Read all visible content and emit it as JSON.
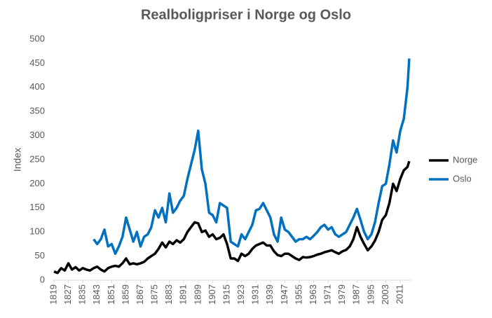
{
  "chart_data": {
    "type": "line",
    "title": "Realboligpriser i Norge og Oslo",
    "y_label": "Index",
    "x": [
      1819,
      1821,
      1823,
      1825,
      1827,
      1829,
      1831,
      1833,
      1835,
      1837,
      1839,
      1841,
      1843,
      1845,
      1847,
      1849,
      1851,
      1853,
      1855,
      1857,
      1859,
      1861,
      1863,
      1865,
      1867,
      1869,
      1871,
      1873,
      1875,
      1877,
      1879,
      1881,
      1883,
      1885,
      1887,
      1889,
      1891,
      1893,
      1895,
      1897,
      1899,
      1901,
      1903,
      1905,
      1907,
      1909,
      1911,
      1913,
      1915,
      1917,
      1919,
      1921,
      1923,
      1925,
      1927,
      1929,
      1931,
      1933,
      1935,
      1937,
      1939,
      1941,
      1943,
      1945,
      1947,
      1949,
      1951,
      1953,
      1955,
      1957,
      1959,
      1961,
      1963,
      1965,
      1967,
      1969,
      1971,
      1973,
      1975,
      1977,
      1979,
      1981,
      1983,
      1985,
      1987,
      1989,
      1991,
      1993,
      1995,
      1997,
      1999,
      2001,
      2003,
      2005,
      2007,
      2009,
      2011,
      2013,
      2015,
      2016
    ],
    "series": [
      {
        "name": "Norge",
        "color": "#000000",
        "values": [
          18,
          15,
          25,
          20,
          35,
          22,
          27,
          20,
          25,
          22,
          20,
          25,
          28,
          22,
          18,
          25,
          28,
          30,
          28,
          35,
          45,
          33,
          35,
          33,
          35,
          38,
          45,
          50,
          55,
          65,
          78,
          68,
          80,
          75,
          83,
          78,
          85,
          100,
          110,
          120,
          118,
          100,
          103,
          90,
          95,
          85,
          88,
          95,
          75,
          45,
          45,
          40,
          55,
          50,
          55,
          65,
          72,
          75,
          78,
          72,
          72,
          60,
          52,
          50,
          55,
          55,
          50,
          45,
          42,
          48,
          47,
          48,
          50,
          53,
          55,
          58,
          60,
          62,
          58,
          55,
          60,
          63,
          70,
          85,
          110,
          90,
          75,
          62,
          70,
          82,
          100,
          125,
          135,
          160,
          200,
          185,
          210,
          228,
          235,
          247
        ]
      },
      {
        "name": "Oslo",
        "color": "#0070c0",
        "values": [
          null,
          null,
          null,
          null,
          null,
          null,
          null,
          null,
          null,
          null,
          null,
          85,
          75,
          85,
          105,
          70,
          75,
          55,
          70,
          90,
          130,
          105,
          80,
          100,
          70,
          90,
          95,
          110,
          145,
          130,
          150,
          120,
          180,
          140,
          150,
          165,
          175,
          210,
          240,
          270,
          310,
          230,
          200,
          140,
          135,
          120,
          160,
          155,
          150,
          80,
          75,
          70,
          95,
          85,
          100,
          115,
          145,
          148,
          160,
          145,
          130,
          95,
          80,
          130,
          105,
          100,
          90,
          80,
          85,
          85,
          90,
          85,
          92,
          100,
          110,
          115,
          105,
          110,
          95,
          90,
          95,
          100,
          115,
          130,
          148,
          125,
          100,
          85,
          95,
          120,
          160,
          195,
          200,
          240,
          290,
          265,
          310,
          335,
          400,
          460
        ]
      }
    ],
    "xlim": [
      1818,
      2017
    ],
    "xticks": [
      1819,
      1827,
      1835,
      1843,
      1851,
      1859,
      1867,
      1875,
      1883,
      1891,
      1899,
      1907,
      1915,
      1923,
      1931,
      1939,
      1947,
      1955,
      1963,
      1971,
      1979,
      1987,
      1995,
      2003,
      2011
    ],
    "ylim": [
      0,
      500
    ],
    "yticks": [
      0,
      50,
      100,
      150,
      200,
      250,
      300,
      350,
      400,
      450,
      500
    ],
    "grid": false,
    "legend": "right"
  }
}
